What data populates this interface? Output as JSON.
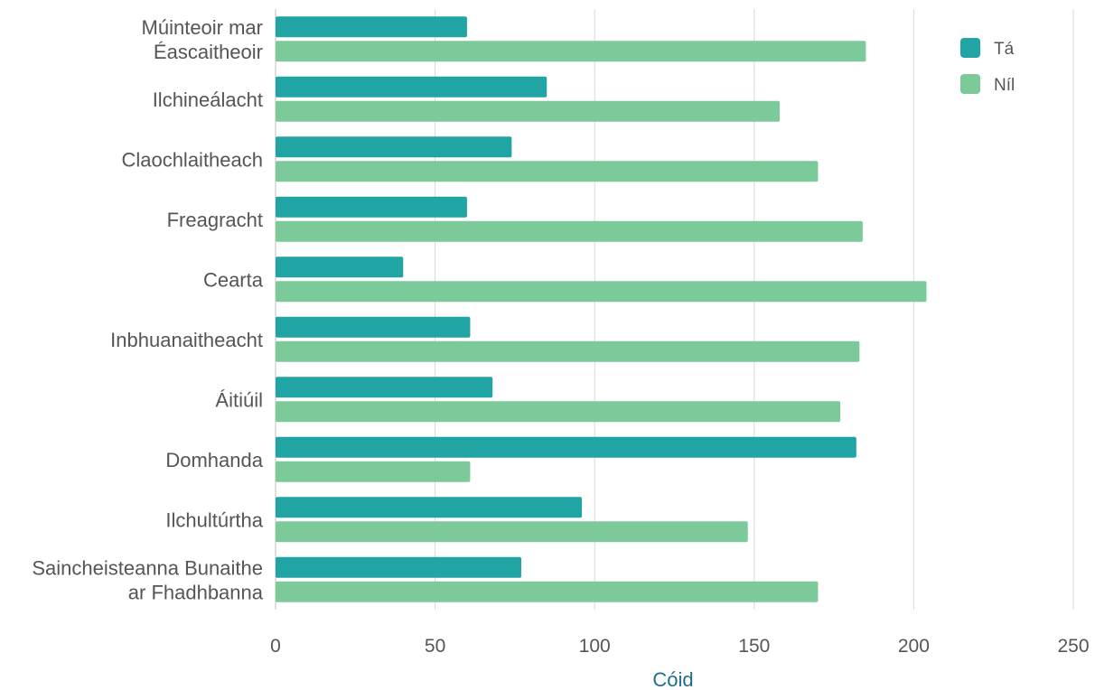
{
  "chart_data": {
    "type": "bar",
    "orientation": "horizontal",
    "categories": [
      [
        "Múinteoir mar",
        "Éascaitheoir"
      ],
      [
        "Ilchineálacht"
      ],
      [
        "Claochlaitheach"
      ],
      [
        "Freagracht"
      ],
      [
        "Cearta"
      ],
      [
        "Inbhuanaitheacht"
      ],
      [
        "Áitiúil"
      ],
      [
        "Domhanda"
      ],
      [
        "Ilchultúrtha"
      ],
      [
        "Saincheisteanna Bunaithe",
        "ar Fhadhbanna"
      ]
    ],
    "series": [
      {
        "name": "Tá",
        "color": "#20a4a4",
        "values": [
          60,
          85,
          74,
          60,
          40,
          61,
          68,
          182,
          96,
          77
        ]
      },
      {
        "name": "Níl",
        "color": "#7cca9a",
        "values": [
          185,
          158,
          170,
          184,
          204,
          183,
          177,
          61,
          148,
          170
        ]
      }
    ],
    "xlabel": "Cóid",
    "xlabel_color": "#1f6e8c",
    "xlim": [
      0,
      250
    ],
    "xticks": [
      0,
      50,
      100,
      150,
      200,
      250
    ],
    "grid": "vertical",
    "legend": "top-right"
  }
}
